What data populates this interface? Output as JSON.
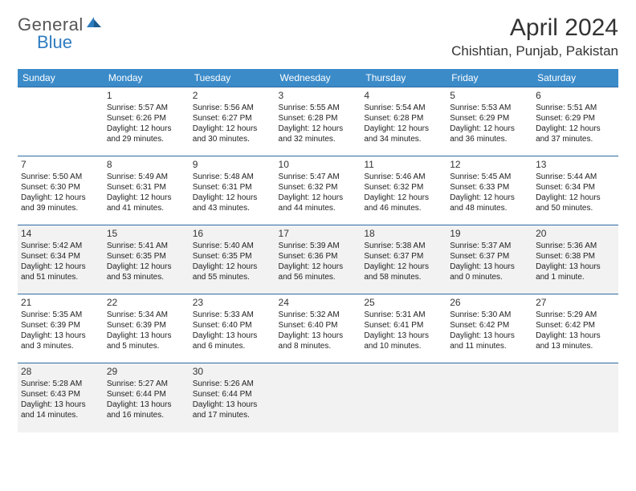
{
  "logo": {
    "text1": "General",
    "text2": "Blue"
  },
  "title": "April 2024",
  "location": "Chishtian, Punjab, Pakistan",
  "colors": {
    "header_bg": "#3b8bc9",
    "header_text": "#ffffff",
    "row_border": "#2e6ca3",
    "even_bg": "#f2f2f2",
    "odd_bg": "#ffffff",
    "logo_blue": "#2e7cc0"
  },
  "day_headers": [
    "Sunday",
    "Monday",
    "Tuesday",
    "Wednesday",
    "Thursday",
    "Friday",
    "Saturday"
  ],
  "weeks": [
    [
      null,
      {
        "n": "1",
        "sr": "5:57 AM",
        "ss": "6:26 PM",
        "dl1": "Daylight: 12 hours",
        "dl2": "and 29 minutes."
      },
      {
        "n": "2",
        "sr": "5:56 AM",
        "ss": "6:27 PM",
        "dl1": "Daylight: 12 hours",
        "dl2": "and 30 minutes."
      },
      {
        "n": "3",
        "sr": "5:55 AM",
        "ss": "6:28 PM",
        "dl1": "Daylight: 12 hours",
        "dl2": "and 32 minutes."
      },
      {
        "n": "4",
        "sr": "5:54 AM",
        "ss": "6:28 PM",
        "dl1": "Daylight: 12 hours",
        "dl2": "and 34 minutes."
      },
      {
        "n": "5",
        "sr": "5:53 AM",
        "ss": "6:29 PM",
        "dl1": "Daylight: 12 hours",
        "dl2": "and 36 minutes."
      },
      {
        "n": "6",
        "sr": "5:51 AM",
        "ss": "6:29 PM",
        "dl1": "Daylight: 12 hours",
        "dl2": "and 37 minutes."
      }
    ],
    [
      {
        "n": "7",
        "sr": "5:50 AM",
        "ss": "6:30 PM",
        "dl1": "Daylight: 12 hours",
        "dl2": "and 39 minutes."
      },
      {
        "n": "8",
        "sr": "5:49 AM",
        "ss": "6:31 PM",
        "dl1": "Daylight: 12 hours",
        "dl2": "and 41 minutes."
      },
      {
        "n": "9",
        "sr": "5:48 AM",
        "ss": "6:31 PM",
        "dl1": "Daylight: 12 hours",
        "dl2": "and 43 minutes."
      },
      {
        "n": "10",
        "sr": "5:47 AM",
        "ss": "6:32 PM",
        "dl1": "Daylight: 12 hours",
        "dl2": "and 44 minutes."
      },
      {
        "n": "11",
        "sr": "5:46 AM",
        "ss": "6:32 PM",
        "dl1": "Daylight: 12 hours",
        "dl2": "and 46 minutes."
      },
      {
        "n": "12",
        "sr": "5:45 AM",
        "ss": "6:33 PM",
        "dl1": "Daylight: 12 hours",
        "dl2": "and 48 minutes."
      },
      {
        "n": "13",
        "sr": "5:44 AM",
        "ss": "6:34 PM",
        "dl1": "Daylight: 12 hours",
        "dl2": "and 50 minutes."
      }
    ],
    [
      {
        "n": "14",
        "sr": "5:42 AM",
        "ss": "6:34 PM",
        "dl1": "Daylight: 12 hours",
        "dl2": "and 51 minutes."
      },
      {
        "n": "15",
        "sr": "5:41 AM",
        "ss": "6:35 PM",
        "dl1": "Daylight: 12 hours",
        "dl2": "and 53 minutes."
      },
      {
        "n": "16",
        "sr": "5:40 AM",
        "ss": "6:35 PM",
        "dl1": "Daylight: 12 hours",
        "dl2": "and 55 minutes."
      },
      {
        "n": "17",
        "sr": "5:39 AM",
        "ss": "6:36 PM",
        "dl1": "Daylight: 12 hours",
        "dl2": "and 56 minutes."
      },
      {
        "n": "18",
        "sr": "5:38 AM",
        "ss": "6:37 PM",
        "dl1": "Daylight: 12 hours",
        "dl2": "and 58 minutes."
      },
      {
        "n": "19",
        "sr": "5:37 AM",
        "ss": "6:37 PM",
        "dl1": "Daylight: 13 hours",
        "dl2": "and 0 minutes."
      },
      {
        "n": "20",
        "sr": "5:36 AM",
        "ss": "6:38 PM",
        "dl1": "Daylight: 13 hours",
        "dl2": "and 1 minute."
      }
    ],
    [
      {
        "n": "21",
        "sr": "5:35 AM",
        "ss": "6:39 PM",
        "dl1": "Daylight: 13 hours",
        "dl2": "and 3 minutes."
      },
      {
        "n": "22",
        "sr": "5:34 AM",
        "ss": "6:39 PM",
        "dl1": "Daylight: 13 hours",
        "dl2": "and 5 minutes."
      },
      {
        "n": "23",
        "sr": "5:33 AM",
        "ss": "6:40 PM",
        "dl1": "Daylight: 13 hours",
        "dl2": "and 6 minutes."
      },
      {
        "n": "24",
        "sr": "5:32 AM",
        "ss": "6:40 PM",
        "dl1": "Daylight: 13 hours",
        "dl2": "and 8 minutes."
      },
      {
        "n": "25",
        "sr": "5:31 AM",
        "ss": "6:41 PM",
        "dl1": "Daylight: 13 hours",
        "dl2": "and 10 minutes."
      },
      {
        "n": "26",
        "sr": "5:30 AM",
        "ss": "6:42 PM",
        "dl1": "Daylight: 13 hours",
        "dl2": "and 11 minutes."
      },
      {
        "n": "27",
        "sr": "5:29 AM",
        "ss": "6:42 PM",
        "dl1": "Daylight: 13 hours",
        "dl2": "and 13 minutes."
      }
    ],
    [
      {
        "n": "28",
        "sr": "5:28 AM",
        "ss": "6:43 PM",
        "dl1": "Daylight: 13 hours",
        "dl2": "and 14 minutes."
      },
      {
        "n": "29",
        "sr": "5:27 AM",
        "ss": "6:44 PM",
        "dl1": "Daylight: 13 hours",
        "dl2": "and 16 minutes."
      },
      {
        "n": "30",
        "sr": "5:26 AM",
        "ss": "6:44 PM",
        "dl1": "Daylight: 13 hours",
        "dl2": "and 17 minutes."
      },
      null,
      null,
      null,
      null
    ]
  ],
  "labels": {
    "sunrise": "Sunrise:",
    "sunset": "Sunset:"
  }
}
